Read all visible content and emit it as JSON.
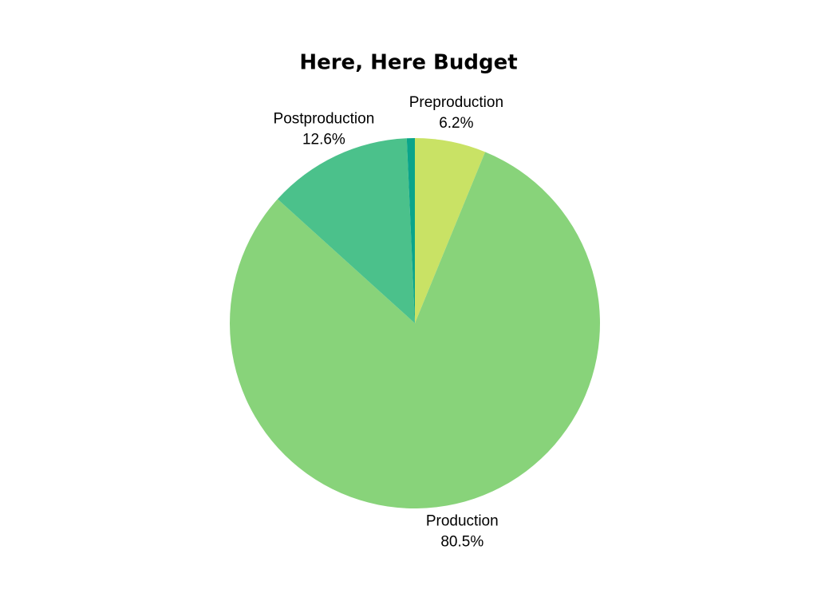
{
  "chart_data": {
    "type": "pie",
    "title": "Here, Here Budget",
    "categories": [
      "Preproduction",
      "Production",
      "Postproduction",
      null
    ],
    "values": [
      6.2,
      80.5,
      12.6,
      0.7
    ],
    "value_labels": [
      "6.2%",
      "80.5%",
      "12.6%",
      null
    ],
    "colors": [
      "#c9e265",
      "#88d37a",
      "#4bc18b",
      "#0aa58a"
    ]
  }
}
